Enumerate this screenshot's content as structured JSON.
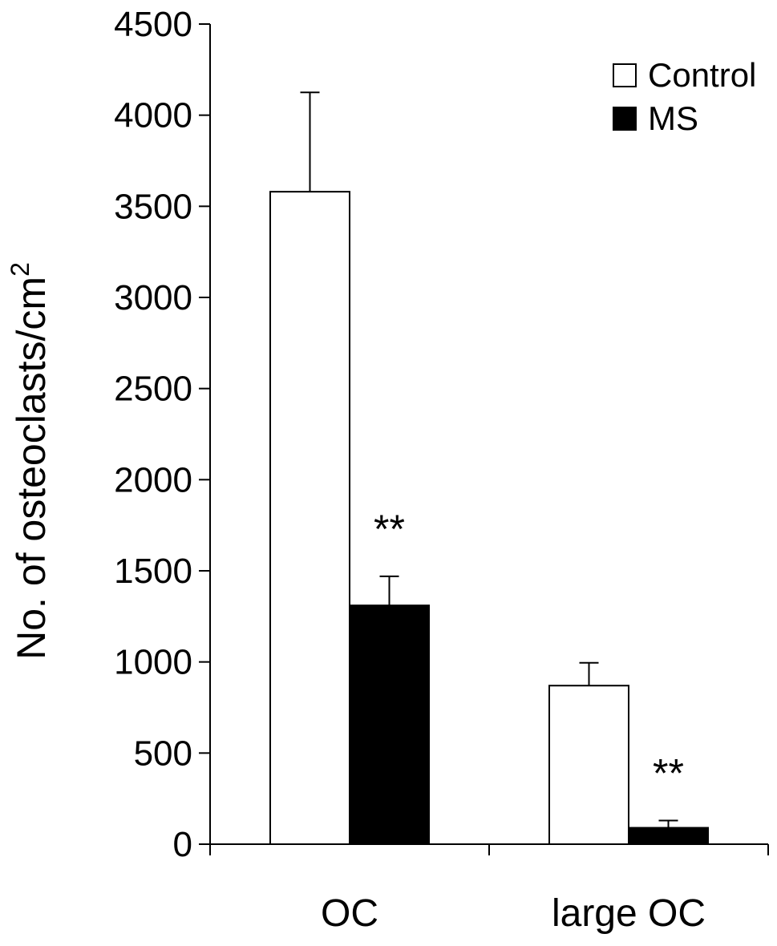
{
  "chart_data": {
    "type": "bar",
    "title": "",
    "xlabel": "",
    "ylabel": "No. of osteoclasts/cm",
    "ylabel_superscript": "2",
    "ylim": [
      0,
      4500
    ],
    "yticks": [
      "0",
      "500",
      "1000",
      "1500",
      "2000",
      "2500",
      "3000",
      "3500",
      "4000",
      "4500"
    ],
    "categories": [
      "OC",
      "large OC"
    ],
    "legend_position": "top-right",
    "series": [
      {
        "name": "Control",
        "color": "#ffffff",
        "values": [
          3580,
          870
        ],
        "errors": [
          545,
          125
        ]
      },
      {
        "name": "MS",
        "color": "#000000",
        "values": [
          1310,
          90
        ],
        "errors": [
          160,
          40
        ]
      }
    ],
    "annotations": [
      {
        "text": "**",
        "category": 0,
        "series": 1
      },
      {
        "text": "**",
        "category": 1,
        "series": 1
      }
    ]
  }
}
